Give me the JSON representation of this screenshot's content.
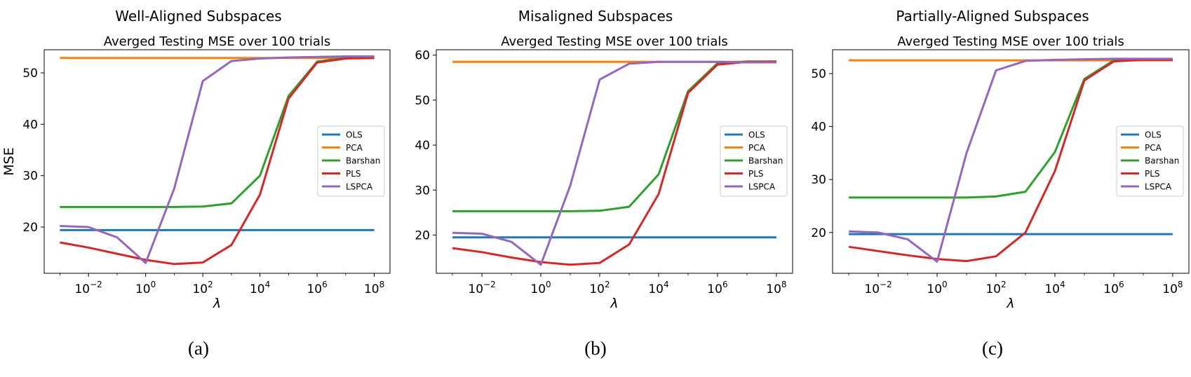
{
  "chart_data": [
    {
      "type": "line",
      "title": "Well-Aligned Subspaces",
      "subtitle": "Averged Testing MSE over 100 trials",
      "xlabel": "λ",
      "ylabel": "MSE",
      "caption": "(a)",
      "xscale": "log",
      "x": [
        0.001,
        0.01,
        0.1,
        1,
        10,
        100,
        1000,
        10000,
        100000,
        1000000,
        10000000,
        100000000
      ],
      "xticks": [
        "10^-2",
        "10^0",
        "10^2",
        "10^4",
        "10^6",
        "10^8"
      ],
      "yticks": [
        20,
        30,
        40,
        50
      ],
      "ylim": [
        11,
        54.5
      ],
      "legend_position": "center-right",
      "series": [
        {
          "name": "OLS",
          "color": "#1f77b4",
          "values": [
            19.4,
            19.4,
            19.4,
            19.4,
            19.4,
            19.4,
            19.4,
            19.4,
            19.4,
            19.4,
            19.4,
            19.4
          ]
        },
        {
          "name": "PCA",
          "color": "#ff7f0e",
          "values": [
            52.9,
            52.9,
            52.9,
            52.9,
            52.9,
            52.9,
            52.9,
            52.9,
            52.9,
            52.9,
            52.9,
            52.9
          ]
        },
        {
          "name": "Barshan",
          "color": "#2ca02c",
          "values": [
            23.9,
            23.9,
            23.9,
            23.9,
            23.9,
            24.0,
            24.6,
            30.0,
            45.5,
            52.2,
            52.9,
            53.0
          ]
        },
        {
          "name": "PLS",
          "color": "#d62728",
          "values": [
            17.0,
            16.0,
            14.8,
            13.6,
            12.8,
            13.1,
            16.5,
            26.3,
            45.0,
            52.0,
            52.8,
            52.9
          ]
        },
        {
          "name": "LSPCA",
          "color": "#9467bd",
          "values": [
            20.2,
            20.0,
            18.0,
            13.0,
            27.5,
            48.4,
            52.3,
            52.8,
            53.0,
            53.1,
            53.2,
            53.2
          ]
        }
      ]
    },
    {
      "type": "line",
      "title": "Misaligned Subspaces",
      "subtitle": "Averged Testing MSE over 100 trials",
      "xlabel": "λ",
      "ylabel": "",
      "caption": "(b)",
      "xscale": "log",
      "x": [
        0.001,
        0.01,
        0.1,
        1,
        10,
        100,
        1000,
        10000,
        100000,
        1000000,
        10000000,
        100000000
      ],
      "xticks": [
        "10^-2",
        "10^0",
        "10^2",
        "10^4",
        "10^6",
        "10^8"
      ],
      "yticks": [
        20,
        30,
        40,
        50,
        60
      ],
      "ylim": [
        11.5,
        61.2
      ],
      "legend_position": "center-right",
      "series": [
        {
          "name": "OLS",
          "color": "#1f77b4",
          "values": [
            19.5,
            19.5,
            19.5,
            19.5,
            19.5,
            19.5,
            19.5,
            19.5,
            19.5,
            19.5,
            19.5,
            19.5
          ]
        },
        {
          "name": "PCA",
          "color": "#ff7f0e",
          "values": [
            58.5,
            58.5,
            58.5,
            58.5,
            58.5,
            58.5,
            58.5,
            58.5,
            58.5,
            58.5,
            58.5,
            58.5
          ]
        },
        {
          "name": "Barshan",
          "color": "#2ca02c",
          "values": [
            25.3,
            25.3,
            25.3,
            25.3,
            25.3,
            25.4,
            26.3,
            33.5,
            52.0,
            58.2,
            58.6,
            58.6
          ]
        },
        {
          "name": "PLS",
          "color": "#d62728",
          "values": [
            17.1,
            16.2,
            15.0,
            14.0,
            13.4,
            13.8,
            17.9,
            29.1,
            51.6,
            57.9,
            58.5,
            58.6
          ]
        },
        {
          "name": "LSPCA",
          "color": "#9467bd",
          "values": [
            20.5,
            20.3,
            18.5,
            13.4,
            31.0,
            54.6,
            58.1,
            58.5,
            58.5,
            58.5,
            58.4,
            58.4
          ]
        }
      ]
    },
    {
      "type": "line",
      "title": "Partially-Aligned Subspaces",
      "subtitle": "Averged Testing MSE over 100 trials",
      "xlabel": "λ",
      "ylabel": "",
      "caption": "(c)",
      "xscale": "log",
      "x": [
        0.001,
        0.01,
        0.1,
        1,
        10,
        100,
        1000,
        10000,
        100000,
        1000000,
        10000000,
        100000000
      ],
      "xticks": [
        "10^-2",
        "10^0",
        "10^2",
        "10^4",
        "10^6",
        "10^8"
      ],
      "yticks": [
        20,
        30,
        40,
        50
      ],
      "ylim": [
        12.3,
        54.5
      ],
      "legend_position": "center-right",
      "series": [
        {
          "name": "OLS",
          "color": "#1f77b4",
          "values": [
            19.7,
            19.7,
            19.7,
            19.7,
            19.7,
            19.7,
            19.7,
            19.7,
            19.7,
            19.7,
            19.7,
            19.7
          ]
        },
        {
          "name": "PCA",
          "color": "#ff7f0e",
          "values": [
            52.5,
            52.5,
            52.5,
            52.5,
            52.5,
            52.5,
            52.5,
            52.5,
            52.5,
            52.5,
            52.5,
            52.5
          ]
        },
        {
          "name": "Barshan",
          "color": "#2ca02c",
          "values": [
            26.6,
            26.6,
            26.6,
            26.6,
            26.6,
            26.8,
            27.7,
            35.2,
            49.0,
            52.5,
            52.7,
            52.7
          ]
        },
        {
          "name": "PLS",
          "color": "#d62728",
          "values": [
            17.3,
            16.5,
            15.7,
            15.0,
            14.6,
            15.5,
            20.0,
            31.6,
            48.7,
            52.3,
            52.6,
            52.6
          ]
        },
        {
          "name": "LSPCA",
          "color": "#9467bd",
          "values": [
            20.2,
            20.0,
            18.7,
            14.5,
            35.0,
            50.6,
            52.4,
            52.6,
            52.7,
            52.8,
            52.8,
            52.8
          ]
        }
      ]
    }
  ]
}
